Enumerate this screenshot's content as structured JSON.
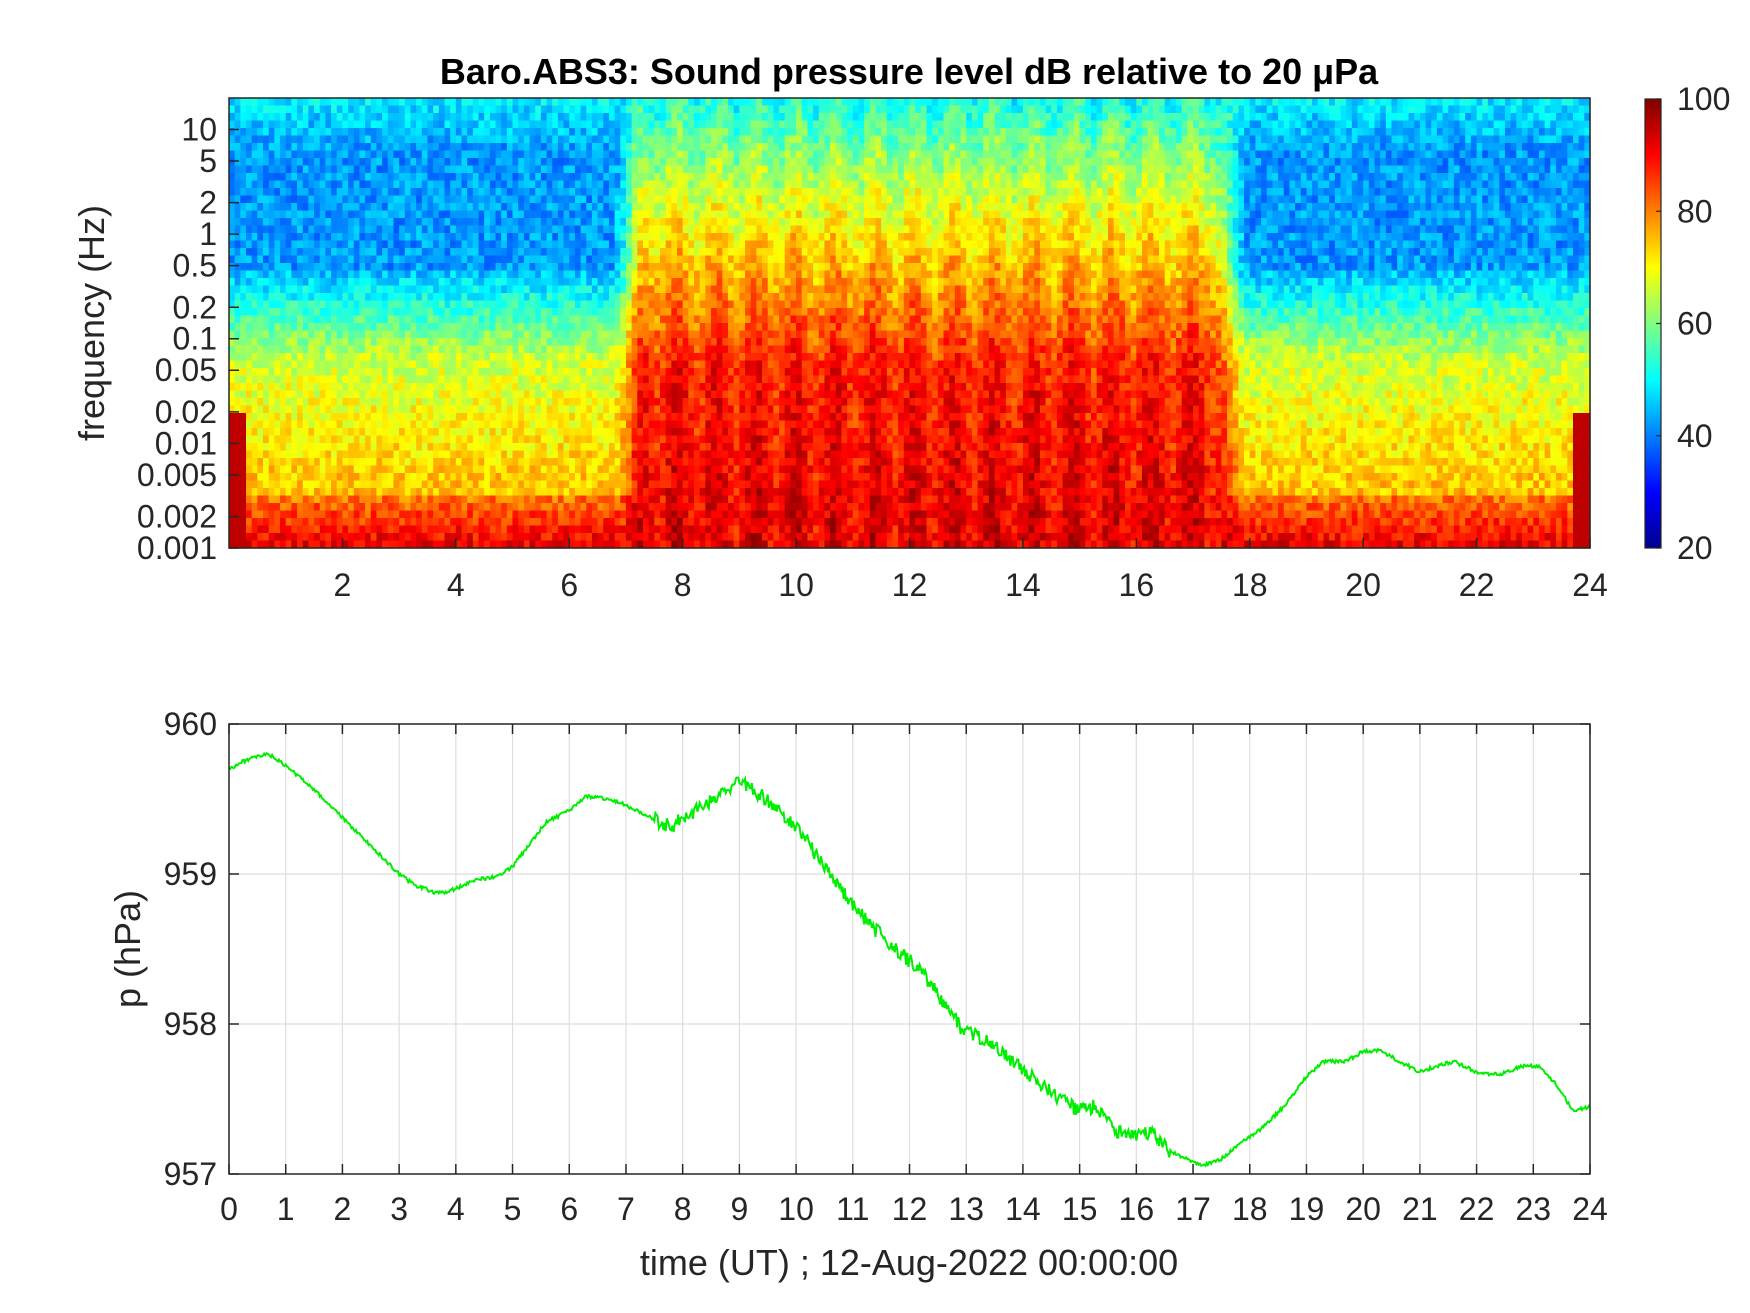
{
  "chart_data": [
    {
      "type": "heatmap",
      "title": "Baro.ABS3: Sound pressure level dB relative to 20 μPa",
      "ylabel": "frequency (Hz)",
      "xlabel": "",
      "x_ticks": [
        "2",
        "4",
        "6",
        "8",
        "10",
        "12",
        "14",
        "16",
        "18",
        "20",
        "22",
        "24"
      ],
      "xlim": [
        0,
        24
      ],
      "y_scale": "log",
      "ylim": [
        0.001,
        20
      ],
      "y_ticks": [
        "0.001",
        "0.002",
        "0.005",
        "0.01",
        "0.02",
        "0.05",
        "0.1",
        "0.2",
        "0.5",
        "1",
        "2",
        "5",
        "10"
      ],
      "colorbar": {
        "min": 20,
        "max": 100,
        "ticks": [
          "20",
          "40",
          "60",
          "80",
          "100"
        ],
        "colormap": "jet"
      },
      "grid": false,
      "description_of_field": {
        "quiet_periods_hours": [
          [
            0,
            7
          ],
          [
            18,
            24
          ]
        ],
        "active_periods_hours": [
          [
            7,
            18
          ]
        ],
        "quiet_high_freq_db": 45,
        "quiet_low_freq_db": 75,
        "active_high_freq_db": 65,
        "active_low_freq_db": 92
      }
    },
    {
      "type": "line",
      "title": "",
      "xlabel": "time (UT) ; 12-Aug-2022 00:00:00",
      "ylabel": "p (hPa)",
      "xlim": [
        0,
        24
      ],
      "ylim": [
        957,
        960
      ],
      "x_ticks": [
        "0",
        "1",
        "2",
        "3",
        "4",
        "5",
        "6",
        "7",
        "8",
        "9",
        "10",
        "11",
        "12",
        "13",
        "14",
        "15",
        "16",
        "17",
        "18",
        "19",
        "20",
        "21",
        "22",
        "23",
        "24"
      ],
      "y_ticks": [
        "957",
        "958",
        "959",
        "960"
      ],
      "grid": true,
      "line_color": "#00ee00",
      "series": [
        {
          "x": [
            0,
            0.3,
            0.7,
            1.0,
            1.4,
            1.8,
            2.2,
            2.6,
            3.0,
            3.3,
            3.7,
            4.0,
            4.3,
            4.7,
            5.0,
            5.3,
            5.6,
            6.0,
            6.3,
            6.7,
            7.0,
            7.4,
            7.8,
            8.2,
            8.6,
            9.0,
            9.3,
            9.6,
            10.0,
            10.4,
            10.8,
            11.2,
            11.6,
            12.0,
            12.3,
            12.6,
            12.9,
            13.3,
            13.6,
            14.0,
            14.3,
            14.6,
            15.0,
            15.3,
            15.6,
            16.0,
            16.3,
            16.6,
            17.0,
            17.2,
            17.5,
            17.8,
            18.2,
            18.6,
            19.0,
            19.3,
            19.7,
            20.0,
            20.3,
            20.6,
            21.0,
            21.3,
            21.6,
            22.0,
            22.4,
            22.8,
            23.1,
            23.4,
            23.7,
            24.0
          ],
          "y": [
            959.7,
            959.76,
            959.8,
            959.72,
            959.6,
            959.45,
            959.3,
            959.15,
            959.0,
            958.92,
            958.87,
            958.9,
            958.96,
            958.98,
            959.05,
            959.2,
            959.35,
            959.42,
            959.52,
            959.5,
            959.46,
            959.38,
            959.32,
            959.42,
            959.52,
            959.62,
            959.55,
            959.45,
            959.32,
            959.1,
            958.9,
            958.7,
            958.55,
            958.42,
            958.3,
            958.15,
            957.98,
            957.9,
            957.82,
            957.7,
            957.6,
            957.52,
            957.42,
            957.45,
            957.3,
            957.25,
            957.28,
            957.15,
            957.08,
            957.06,
            957.1,
            957.2,
            957.3,
            957.45,
            957.65,
            957.75,
            957.75,
            957.82,
            957.82,
            957.76,
            957.68,
            957.72,
            957.75,
            957.68,
            957.66,
            957.72,
            957.72,
            957.6,
            957.42,
            957.45
          ]
        }
      ]
    }
  ]
}
